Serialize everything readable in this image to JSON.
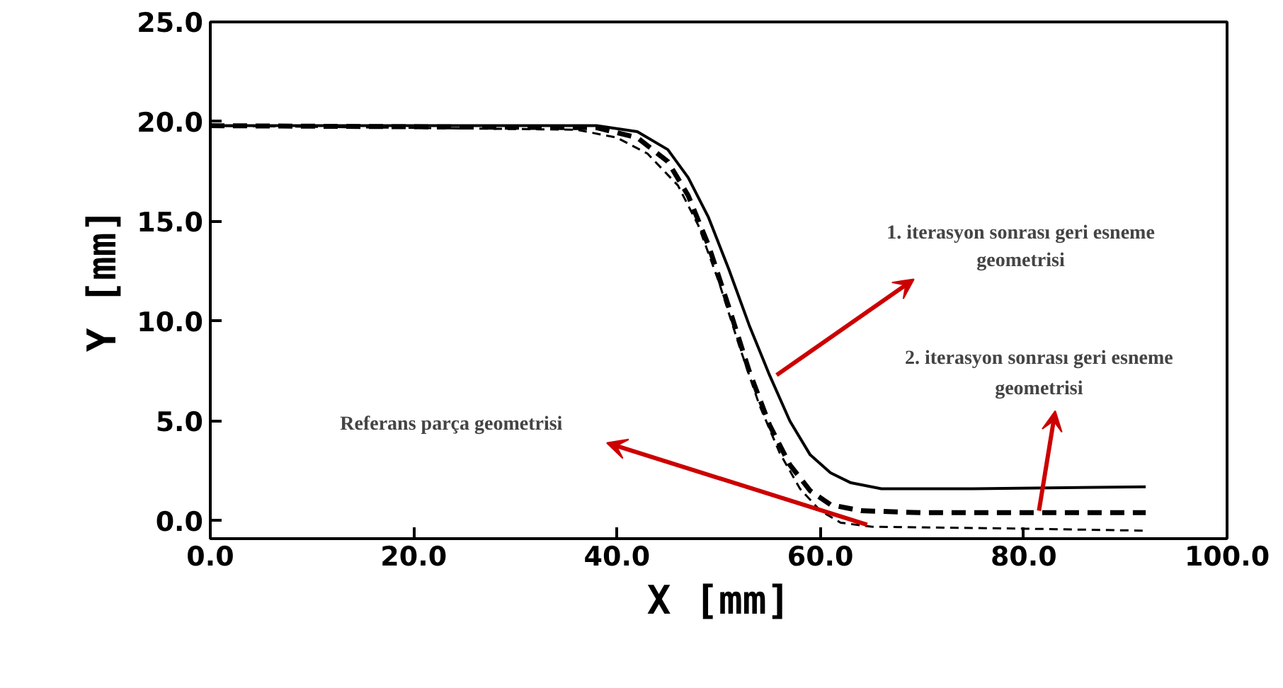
{
  "chart_data": {
    "type": "line",
    "xlabel": "X [mm]",
    "ylabel": "Y [mm]",
    "xlim": [
      0,
      100
    ],
    "ylim": [
      -0.9,
      25
    ],
    "grid": false,
    "xticks": [
      {
        "value": 0,
        "label": "0.0"
      },
      {
        "value": 20,
        "label": "20.0"
      },
      {
        "value": 40,
        "label": "40.0"
      },
      {
        "value": 60,
        "label": "60.0"
      },
      {
        "value": 80,
        "label": "80.0"
      },
      {
        "value": 100,
        "label": "100.0"
      }
    ],
    "yticks": [
      {
        "value": 0,
        "label": "0.0"
      },
      {
        "value": 5,
        "label": "5.0"
      },
      {
        "value": 10,
        "label": "10.0"
      },
      {
        "value": 15,
        "label": "15.0"
      },
      {
        "value": 20,
        "label": "20.0"
      },
      {
        "value": 25,
        "label": "25.0"
      }
    ],
    "series": [
      {
        "color": "#000000",
        "line_style": "solid",
        "x": [
          0,
          20,
          38,
          42,
          45,
          47,
          49,
          51,
          53,
          55,
          57,
          59,
          61,
          63,
          66,
          75,
          92
        ],
        "values": [
          19.8,
          19.8,
          19.8,
          19.5,
          18.6,
          17.2,
          15.2,
          12.6,
          9.8,
          7.3,
          5.0,
          3.3,
          2.4,
          1.9,
          1.6,
          1.6,
          1.7
        ]
      },
      {
        "color": "#000000",
        "line_style": "dashed",
        "x": [
          0,
          38,
          42,
          45,
          47,
          49,
          51,
          53,
          55,
          57,
          59,
          61,
          64,
          70,
          92
        ],
        "values": [
          19.8,
          19.7,
          19.2,
          18.0,
          16.3,
          13.8,
          10.7,
          7.5,
          4.8,
          2.8,
          1.5,
          0.8,
          0.5,
          0.4,
          0.4
        ]
      },
      {
        "color": "#000000",
        "line_style": "dashed",
        "x": [
          0,
          36,
          40,
          43,
          46,
          48,
          50,
          52,
          54,
          56,
          58,
          60,
          62,
          65,
          80,
          92
        ],
        "values": [
          19.8,
          19.6,
          19.2,
          18.4,
          16.8,
          14.8,
          12.0,
          8.8,
          5.8,
          3.4,
          1.6,
          0.5,
          -0.1,
          -0.3,
          -0.4,
          -0.5
        ]
      }
    ],
    "annotations": [
      {
        "text": "1. iterasyon sonrası geri esneme geometrisi",
        "x": 55.7,
        "y": 7.3
      },
      {
        "text": "2. iterasyon sonrası geri esneme geometrisi",
        "x": 81.5,
        "y": 0.5
      },
      "Referans parça geometrisi"
    ]
  }
}
